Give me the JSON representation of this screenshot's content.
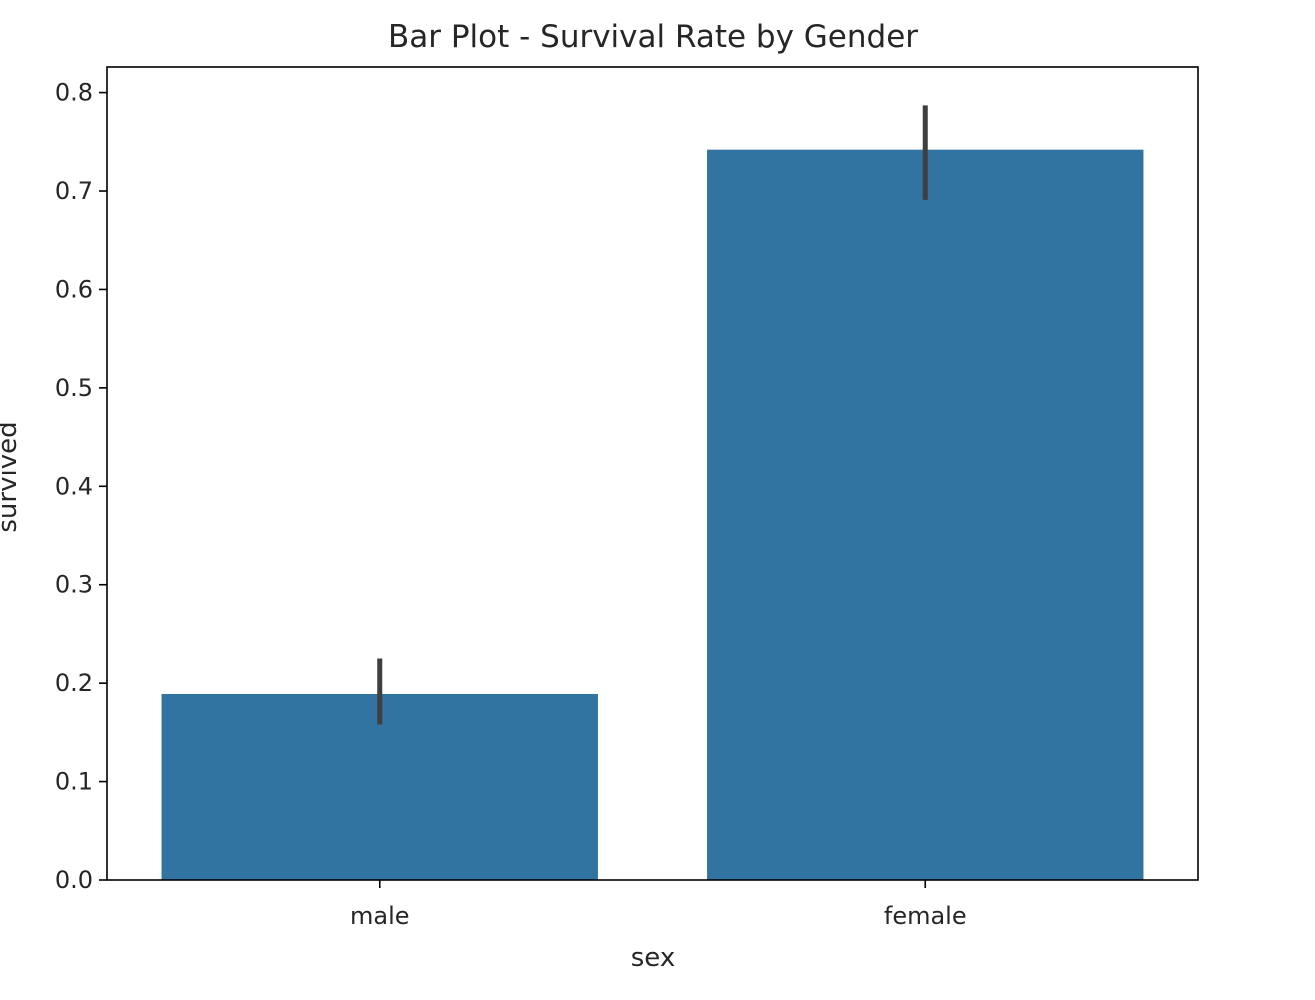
{
  "chart_data": {
    "type": "bar",
    "title": "Bar Plot - Survival Rate by Gender",
    "xlabel": "sex",
    "ylabel": "survived",
    "categories": [
      "male",
      "female"
    ],
    "values": [
      0.189,
      0.742
    ],
    "error_bars": [
      {
        "low": 0.158,
        "high": 0.225
      },
      {
        "low": 0.691,
        "high": 0.787
      }
    ],
    "ylim": [
      0,
      0.826
    ],
    "yticks": [
      0.0,
      0.1,
      0.2,
      0.3,
      0.4,
      0.5,
      0.6,
      0.7,
      0.8
    ],
    "ytick_labels": [
      "0.0",
      "0.1",
      "0.2",
      "0.3",
      "0.4",
      "0.5",
      "0.6",
      "0.7",
      "0.8"
    ],
    "grid": false,
    "bar_color": "#3274a1",
    "error_color": "#3f3f3f"
  }
}
